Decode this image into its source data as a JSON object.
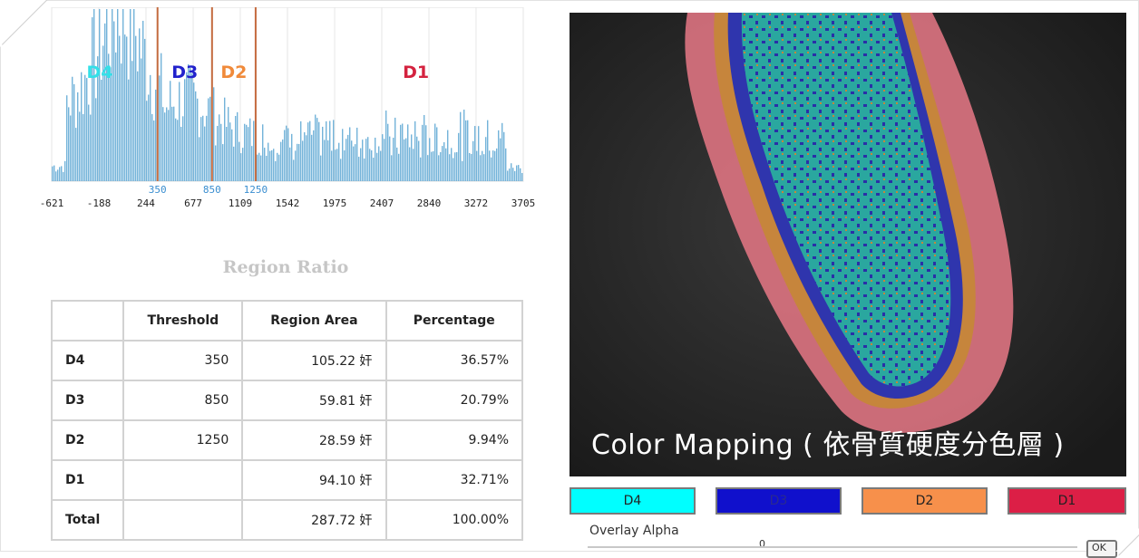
{
  "chart_data": {
    "type": "bar",
    "title": "",
    "xlabel": "",
    "ylabel": "",
    "xlim": [
      -621,
      3705
    ],
    "x_ticks": [
      "-621",
      "-188",
      "244",
      "677",
      "1109",
      "1542",
      "1975",
      "2407",
      "2840",
      "3272",
      "3705"
    ],
    "thresholds": [
      {
        "value": 350,
        "label": "350"
      },
      {
        "value": 850,
        "label": "850"
      },
      {
        "value": 1250,
        "label": "1250"
      }
    ],
    "regions": [
      {
        "label": "D4",
        "x": -180,
        "color": "#33e0e8"
      },
      {
        "label": "D3",
        "x": 600,
        "color": "#2222cc"
      },
      {
        "label": "D2",
        "x": 1050,
        "color": "#f08a3a"
      },
      {
        "label": "D1",
        "x": 2720,
        "color": "#d4223f"
      }
    ],
    "bar_color": "#5aa6d2",
    "threshold_color": "#c46a3e",
    "grid": true
  },
  "ratio_table": {
    "title": "Region Ratio",
    "headers": [
      "",
      "Threshold",
      "Region Area",
      "Percentage"
    ],
    "rows": [
      {
        "label": "D4",
        "threshold": "350",
        "area": "105.22 奸",
        "percentage": "36.57%"
      },
      {
        "label": "D3",
        "threshold": "850",
        "area": "59.81 奸",
        "percentage": "20.79%"
      },
      {
        "label": "D2",
        "threshold": "1250",
        "area": "28.59 奸",
        "percentage": "9.94%"
      },
      {
        "label": "D1",
        "threshold": "",
        "area": "94.10 奸",
        "percentage": "32.71%"
      },
      {
        "label": "Total",
        "threshold": "",
        "area": "287.72 奸",
        "percentage": "100.00%"
      }
    ]
  },
  "ct_view": {
    "caption": "Color Mapping ( 依骨質硬度分色層 )"
  },
  "legend": [
    {
      "label": "D4",
      "color": "#00ffff",
      "text_color": "#222222"
    },
    {
      "label": "D3",
      "color": "#1010cc",
      "text_color": "#2a2a90"
    },
    {
      "label": "D2",
      "color": "#f7904b",
      "text_color": "#222222"
    },
    {
      "label": "D1",
      "color": "#dc1f46",
      "text_color": "#222222"
    }
  ],
  "overlay": {
    "label": "Overlay Alpha",
    "value": "0",
    "fraction": 0.35
  },
  "ok_button": {
    "label": "OK"
  }
}
